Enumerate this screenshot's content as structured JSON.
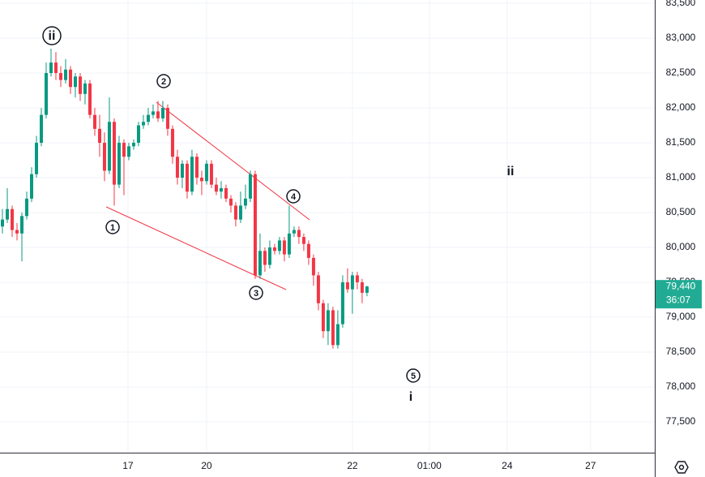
{
  "chart_data": {
    "type": "candlestick",
    "open": [
      80300,
      80400,
      80550,
      80250,
      80200,
      80450,
      80700,
      81050,
      81500,
      81900,
      82500,
      82650,
      82500,
      82400,
      82550,
      82300,
      82450,
      82200,
      82350,
      81900,
      81700,
      81500,
      81100,
      81800,
      80900,
      81500,
      81300,
      81450,
      81500,
      81750,
      81800,
      81900,
      81950,
      81850,
      82000,
      81700,
      81300,
      81000,
      81200,
      80800,
      81300,
      81000,
      80950,
      81200,
      80900,
      80800,
      80850,
      80700,
      80600,
      80400,
      80600,
      80700,
      81050,
      79600,
      79950,
      79750,
      80000,
      79950,
      80100,
      79900,
      80200,
      80250,
      80150,
      80050,
      79850,
      79600,
      79200,
      78800,
      79100,
      78600,
      78900,
      79500,
      79400,
      79600,
      79500,
      79350
    ],
    "high": [
      80550,
      80850,
      80600,
      80350,
      80500,
      80800,
      81150,
      81600,
      82000,
      82650,
      82850,
      82800,
      82600,
      82700,
      82600,
      82500,
      82500,
      82400,
      82400,
      82000,
      81900,
      81650,
      82150,
      81850,
      81600,
      81550,
      81500,
      81550,
      81800,
      81900,
      82000,
      82050,
      82100,
      82100,
      82050,
      81750,
      81400,
      81250,
      81250,
      81400,
      81350,
      81100,
      81250,
      81250,
      81000,
      80950,
      80900,
      80750,
      80650,
      80800,
      80900,
      81100,
      81100,
      80200,
      80000,
      80100,
      80050,
      80150,
      80150,
      80600,
      80300,
      80300,
      80200,
      80100,
      79900,
      79650,
      79250,
      79200,
      79150,
      79100,
      79600,
      79700,
      79650,
      79650,
      79550,
      79450
    ],
    "low": [
      80200,
      80350,
      80150,
      80100,
      79800,
      80400,
      80650,
      81000,
      81450,
      81850,
      82450,
      82400,
      82300,
      82350,
      82200,
      82150,
      82100,
      82050,
      81850,
      81600,
      81300,
      80950,
      81050,
      80600,
      80850,
      80750,
      81250,
      81400,
      81450,
      81700,
      81750,
      81850,
      81800,
      81800,
      81600,
      81200,
      80900,
      80850,
      80700,
      80750,
      80900,
      80750,
      80900,
      80850,
      80750,
      80700,
      80650,
      80500,
      80300,
      80350,
      80550,
      80650,
      79550,
      79550,
      79650,
      79700,
      79900,
      79900,
      79800,
      79850,
      80150,
      80050,
      79950,
      79750,
      79450,
      79100,
      78700,
      78600,
      78550,
      78550,
      78850,
      79350,
      79050,
      79400,
      79200,
      79300
    ],
    "close": [
      80400,
      80550,
      80250,
      80200,
      80450,
      80700,
      81050,
      81500,
      81900,
      82500,
      82650,
      82500,
      82400,
      82550,
      82300,
      82450,
      82200,
      82350,
      81900,
      81700,
      81500,
      81100,
      81800,
      80900,
      81500,
      81300,
      81450,
      81500,
      81750,
      81800,
      81900,
      81950,
      81850,
      82000,
      81700,
      81300,
      81000,
      81200,
      80800,
      81300,
      81000,
      80950,
      81200,
      80900,
      80800,
      80850,
      80700,
      80600,
      80400,
      80600,
      80700,
      81050,
      79600,
      79950,
      79750,
      80000,
      79950,
      80100,
      79900,
      80200,
      80250,
      80150,
      80050,
      79850,
      79600,
      79200,
      78800,
      79100,
      78600,
      78900,
      79500,
      79400,
      79600,
      79500,
      79350,
      79440
    ],
    "up_color": "#089981",
    "down_color": "#f23645",
    "ylim": [
      77058,
      83547
    ],
    "yticks": [
      {
        "value": 77500,
        "label": "77,500"
      },
      {
        "value": 78000,
        "label": "78,000"
      },
      {
        "value": 78500,
        "label": "78,500"
      },
      {
        "value": 79000,
        "label": "79,000"
      },
      {
        "value": 79500,
        "label": "79,500"
      },
      {
        "value": 80000,
        "label": "80,000"
      },
      {
        "value": 80500,
        "label": "80,500"
      },
      {
        "value": 81000,
        "label": "81,000"
      },
      {
        "value": 81500,
        "label": "81,500"
      },
      {
        "value": 82000,
        "label": "82,000"
      },
      {
        "value": 82500,
        "label": "82,500"
      },
      {
        "value": 83000,
        "label": "83,000"
      },
      {
        "value": 83500,
        "label": "83,500"
      }
    ],
    "xlim": [
      -0.5,
      134.2
    ],
    "xticks": [
      {
        "value": 25.83,
        "label": "17"
      },
      {
        "value": 42,
        "label": "20"
      },
      {
        "value": 72,
        "label": "22"
      },
      {
        "value": 87.83,
        "label": "01:00"
      },
      {
        "value": 103.83,
        "label": "24"
      },
      {
        "value": 121,
        "label": "27"
      }
    ],
    "grid": true,
    "last_price": {
      "value": 79440,
      "label": "79,440"
    },
    "countdown": "36:07",
    "annotations": [
      "ii",
      "2",
      "1",
      "3",
      "4",
      "5",
      "i",
      "ii"
    ]
  }
}
